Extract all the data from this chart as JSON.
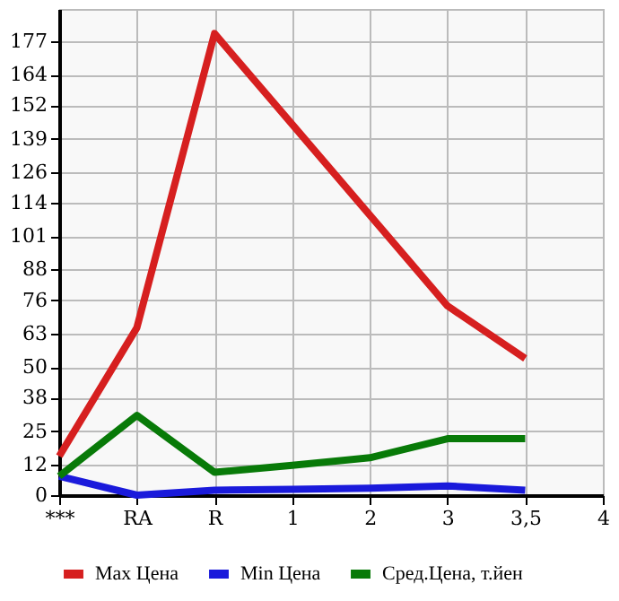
{
  "chart_data": {
    "type": "line",
    "categories": [
      "***",
      "RA",
      "R",
      "1",
      "2",
      "3",
      "3,5",
      "4"
    ],
    "series": [
      {
        "name": "Max Цена",
        "color": "#d61f1f",
        "values": [
          15.2,
          65.3,
          180,
          144.6,
          109.2,
          73.8,
          53.3,
          null
        ]
      },
      {
        "name": "Min Цена",
        "color": "#1a1adb",
        "values": [
          7.4,
          0,
          1.9,
          2.3,
          2.7,
          3.6,
          1.9,
          null
        ]
      },
      {
        "name": "Сред.Цена, т.йен",
        "color": "#087a08",
        "values": [
          7.4,
          31.1,
          8.9,
          11.6,
          14.6,
          22,
          22,
          null
        ]
      }
    ],
    "ylim": [
      0,
      189.6
    ],
    "yticks": [
      0,
      12,
      25,
      38,
      50,
      63,
      76,
      88,
      101,
      114,
      126,
      139,
      152,
      164,
      177
    ],
    "grid": true,
    "legend": "bottom",
    "marker": "none",
    "line_style": "solid"
  }
}
